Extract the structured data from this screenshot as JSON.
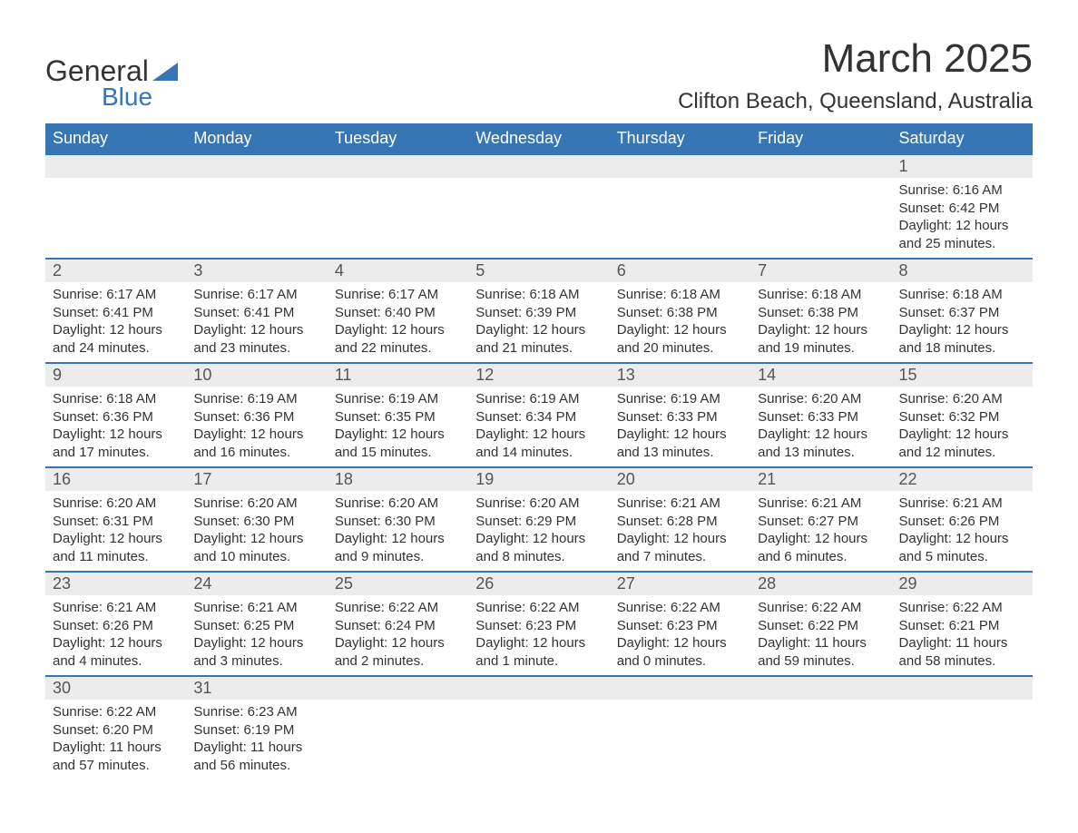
{
  "logo": {
    "word1": "General",
    "word2": "Blue",
    "accent_color": "#3776b5",
    "text_color": "#333333"
  },
  "title": "March 2025",
  "location": "Clifton Beach, Queensland, Australia",
  "colors": {
    "header_bg": "#3776b5",
    "header_text": "#ffffff",
    "row_border": "#3776b5",
    "daynum_bg": "#ececec",
    "body_text": "#333333",
    "background": "#ffffff"
  },
  "typography": {
    "title_fontsize": 44,
    "location_fontsize": 24,
    "dayheader_fontsize": 18,
    "daynum_fontsize": 18,
    "detail_fontsize": 15,
    "font_family": "Arial"
  },
  "day_headers": [
    "Sunday",
    "Monday",
    "Tuesday",
    "Wednesday",
    "Thursday",
    "Friday",
    "Saturday"
  ],
  "weeks": [
    [
      null,
      null,
      null,
      null,
      null,
      null,
      {
        "n": "1",
        "sunrise": "6:16 AM",
        "sunset": "6:42 PM",
        "daylight": "12 hours and 25 minutes."
      }
    ],
    [
      {
        "n": "2",
        "sunrise": "6:17 AM",
        "sunset": "6:41 PM",
        "daylight": "12 hours and 24 minutes."
      },
      {
        "n": "3",
        "sunrise": "6:17 AM",
        "sunset": "6:41 PM",
        "daylight": "12 hours and 23 minutes."
      },
      {
        "n": "4",
        "sunrise": "6:17 AM",
        "sunset": "6:40 PM",
        "daylight": "12 hours and 22 minutes."
      },
      {
        "n": "5",
        "sunrise": "6:18 AM",
        "sunset": "6:39 PM",
        "daylight": "12 hours and 21 minutes."
      },
      {
        "n": "6",
        "sunrise": "6:18 AM",
        "sunset": "6:38 PM",
        "daylight": "12 hours and 20 minutes."
      },
      {
        "n": "7",
        "sunrise": "6:18 AM",
        "sunset": "6:38 PM",
        "daylight": "12 hours and 19 minutes."
      },
      {
        "n": "8",
        "sunrise": "6:18 AM",
        "sunset": "6:37 PM",
        "daylight": "12 hours and 18 minutes."
      }
    ],
    [
      {
        "n": "9",
        "sunrise": "6:18 AM",
        "sunset": "6:36 PM",
        "daylight": "12 hours and 17 minutes."
      },
      {
        "n": "10",
        "sunrise": "6:19 AM",
        "sunset": "6:36 PM",
        "daylight": "12 hours and 16 minutes."
      },
      {
        "n": "11",
        "sunrise": "6:19 AM",
        "sunset": "6:35 PM",
        "daylight": "12 hours and 15 minutes."
      },
      {
        "n": "12",
        "sunrise": "6:19 AM",
        "sunset": "6:34 PM",
        "daylight": "12 hours and 14 minutes."
      },
      {
        "n": "13",
        "sunrise": "6:19 AM",
        "sunset": "6:33 PM",
        "daylight": "12 hours and 13 minutes."
      },
      {
        "n": "14",
        "sunrise": "6:20 AM",
        "sunset": "6:33 PM",
        "daylight": "12 hours and 13 minutes."
      },
      {
        "n": "15",
        "sunrise": "6:20 AM",
        "sunset": "6:32 PM",
        "daylight": "12 hours and 12 minutes."
      }
    ],
    [
      {
        "n": "16",
        "sunrise": "6:20 AM",
        "sunset": "6:31 PM",
        "daylight": "12 hours and 11 minutes."
      },
      {
        "n": "17",
        "sunrise": "6:20 AM",
        "sunset": "6:30 PM",
        "daylight": "12 hours and 10 minutes."
      },
      {
        "n": "18",
        "sunrise": "6:20 AM",
        "sunset": "6:30 PM",
        "daylight": "12 hours and 9 minutes."
      },
      {
        "n": "19",
        "sunrise": "6:20 AM",
        "sunset": "6:29 PM",
        "daylight": "12 hours and 8 minutes."
      },
      {
        "n": "20",
        "sunrise": "6:21 AM",
        "sunset": "6:28 PM",
        "daylight": "12 hours and 7 minutes."
      },
      {
        "n": "21",
        "sunrise": "6:21 AM",
        "sunset": "6:27 PM",
        "daylight": "12 hours and 6 minutes."
      },
      {
        "n": "22",
        "sunrise": "6:21 AM",
        "sunset": "6:26 PM",
        "daylight": "12 hours and 5 minutes."
      }
    ],
    [
      {
        "n": "23",
        "sunrise": "6:21 AM",
        "sunset": "6:26 PM",
        "daylight": "12 hours and 4 minutes."
      },
      {
        "n": "24",
        "sunrise": "6:21 AM",
        "sunset": "6:25 PM",
        "daylight": "12 hours and 3 minutes."
      },
      {
        "n": "25",
        "sunrise": "6:22 AM",
        "sunset": "6:24 PM",
        "daylight": "12 hours and 2 minutes."
      },
      {
        "n": "26",
        "sunrise": "6:22 AM",
        "sunset": "6:23 PM",
        "daylight": "12 hours and 1 minute."
      },
      {
        "n": "27",
        "sunrise": "6:22 AM",
        "sunset": "6:23 PM",
        "daylight": "12 hours and 0 minutes."
      },
      {
        "n": "28",
        "sunrise": "6:22 AM",
        "sunset": "6:22 PM",
        "daylight": "11 hours and 59 minutes."
      },
      {
        "n": "29",
        "sunrise": "6:22 AM",
        "sunset": "6:21 PM",
        "daylight": "11 hours and 58 minutes."
      }
    ],
    [
      {
        "n": "30",
        "sunrise": "6:22 AM",
        "sunset": "6:20 PM",
        "daylight": "11 hours and 57 minutes."
      },
      {
        "n": "31",
        "sunrise": "6:23 AM",
        "sunset": "6:19 PM",
        "daylight": "11 hours and 56 minutes."
      },
      null,
      null,
      null,
      null,
      null
    ]
  ],
  "labels": {
    "sunrise": "Sunrise: ",
    "sunset": "Sunset: ",
    "daylight": "Daylight: "
  }
}
